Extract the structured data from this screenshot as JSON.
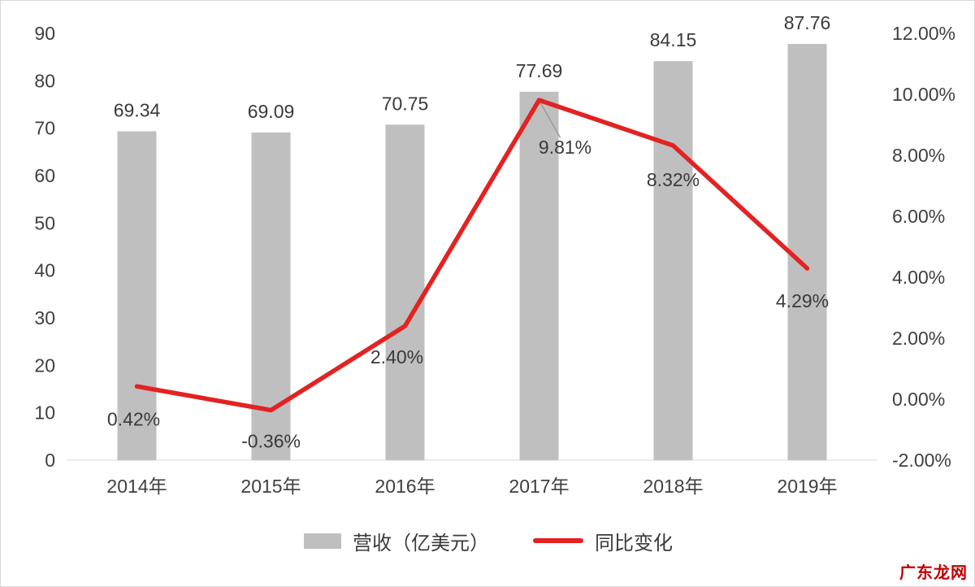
{
  "chart_data": {
    "type": "bar",
    "subtype": "combo-bar-line",
    "categories": [
      "2014年",
      "2015年",
      "2016年",
      "2017年",
      "2018年",
      "2019年"
    ],
    "series": [
      {
        "name": "营收（亿美元）",
        "type": "bar",
        "axis": "left",
        "color": "#bfbfbf",
        "values": [
          69.34,
          69.09,
          70.75,
          77.69,
          84.15,
          87.76
        ],
        "labels": [
          "69.34",
          "69.09",
          "70.75",
          "77.69",
          "84.15",
          "87.76"
        ]
      },
      {
        "name": "同比变化",
        "type": "line",
        "axis": "right",
        "color": "#e32222",
        "values": [
          0.42,
          -0.36,
          2.4,
          9.81,
          8.32,
          4.29
        ],
        "labels": [
          "0.42%",
          "-0.36%",
          "2.40%",
          "9.81%",
          "8.32%",
          "4.29%"
        ]
      }
    ],
    "left_axis": {
      "min": 0,
      "max": 90,
      "step": 10,
      "ticks": [
        "0",
        "10",
        "20",
        "30",
        "40",
        "50",
        "60",
        "70",
        "80",
        "90"
      ]
    },
    "right_axis": {
      "min": -2,
      "max": 12,
      "step": 2,
      "ticks": [
        "-2.00%",
        "0.00%",
        "2.00%",
        "4.00%",
        "6.00%",
        "8.00%",
        "10.00%",
        "12.00%"
      ]
    },
    "grid": false,
    "legend_position": "bottom",
    "legend": [
      {
        "label": "营收（亿美元）",
        "swatch": "bar",
        "color": "#bfbfbf"
      },
      {
        "label": "同比变化",
        "swatch": "line",
        "color": "#e32222"
      }
    ]
  },
  "watermark": "广东龙网"
}
